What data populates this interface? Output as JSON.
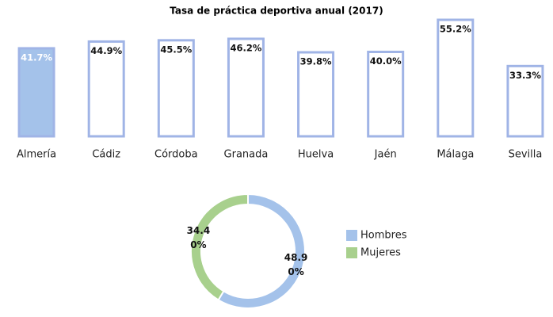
{
  "chart_data": [
    {
      "type": "bar",
      "title": "Tasa de práctica deportiva anual (2017)",
      "categories": [
        "Almería",
        "Cádiz",
        "Córdoba",
        "Granada",
        "Huelva",
        "Jaén",
        "Málaga",
        "Sevilla"
      ],
      "values": [
        41.7,
        44.9,
        45.5,
        46.2,
        39.8,
        40.0,
        55.2,
        33.3
      ],
      "value_labels": [
        "41.7%",
        "44.9%",
        "45.5%",
        "46.2%",
        "39.8%",
        "40.0%",
        "55.2%",
        "33.3%"
      ],
      "colors": [
        "#a4c2ea",
        "#ffffff",
        "#ffffff",
        "#ffffff",
        "#ffffff",
        "#ffffff",
        "#ffffff",
        "#ffffff"
      ],
      "edge_color": "#a0b4e6"
    },
    {
      "type": "donut",
      "categories": [
        "Hombres",
        "Mujeres"
      ],
      "values": [
        48.9,
        34.4
      ],
      "value_labels": [
        "48.90%",
        "34.40%"
      ],
      "colors": [
        "#a4c2ea",
        "#a8d08d"
      ],
      "legend": "right"
    }
  ]
}
